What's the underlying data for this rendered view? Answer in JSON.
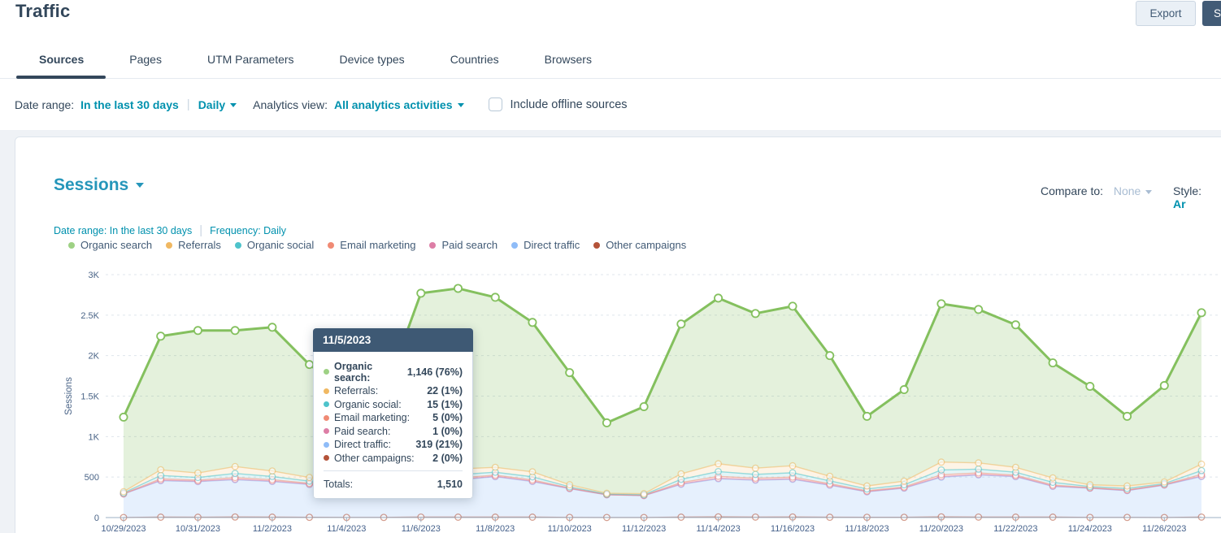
{
  "page": {
    "title": "Traffic"
  },
  "header": {
    "export_button": "Export",
    "save_button": "S"
  },
  "tabs": [
    {
      "label": "Sources",
      "active": true
    },
    {
      "label": "Pages",
      "active": false
    },
    {
      "label": "UTM Parameters",
      "active": false
    },
    {
      "label": "Device types",
      "active": false
    },
    {
      "label": "Countries",
      "active": false
    },
    {
      "label": "Browsers",
      "active": false
    }
  ],
  "filters": {
    "date_range_label": "Date range:",
    "date_range_value": "In the last 30 days",
    "frequency_dropdown": "Daily",
    "analytics_view_label": "Analytics view:",
    "analytics_view_value": "All analytics activities",
    "offline_sources_label": "Include offline sources",
    "offline_sources_checked": false
  },
  "report": {
    "metric_title": "Sessions",
    "compare_label": "Compare to:",
    "compare_value": "None",
    "style_label": "Style:",
    "style_value": "Ar",
    "meta_date_range": "Date range: In the last 30 days",
    "meta_frequency": "Frequency: Daily"
  },
  "tooltip": {
    "date": "11/5/2023",
    "rows": [
      {
        "label": "Organic search:",
        "value": "1,146 (76%)",
        "color": "#9ed184",
        "bold": true
      },
      {
        "label": "Referrals:",
        "value": "22 (1%)",
        "color": "#f0b862",
        "bold": false
      },
      {
        "label": "Organic social:",
        "value": "15 (1%)",
        "color": "#4ec3cb",
        "bold": false
      },
      {
        "label": "Email marketing:",
        "value": "5 (0%)",
        "color": "#f08a74",
        "bold": false
      },
      {
        "label": "Paid search:",
        "value": "1 (0%)",
        "color": "#dd7ea6",
        "bold": false
      },
      {
        "label": "Direct traffic:",
        "value": "319 (21%)",
        "color": "#8fbcf8",
        "bold": false
      },
      {
        "label": "Other campaigns:",
        "value": "2 (0%)",
        "color": "#b45339",
        "bold": false
      }
    ],
    "totals_label": "Totals:",
    "totals_value": "1,510"
  },
  "chart_data": {
    "type": "area",
    "stacked": true,
    "title": "Sessions",
    "ylabel": "Sessions",
    "ylim": [
      0,
      3000
    ],
    "ytick_labels": [
      "0",
      "500",
      "1K",
      "1.5K",
      "2K",
      "2.5K",
      "3K"
    ],
    "x_label_every": 2,
    "x": [
      "10/29/2023",
      "10/30/2023",
      "10/31/2023",
      "11/1/2023",
      "11/2/2023",
      "11/3/2023",
      "11/4/2023",
      "11/5/2023",
      "11/6/2023",
      "11/7/2023",
      "11/8/2023",
      "11/9/2023",
      "11/10/2023",
      "11/11/2023",
      "11/12/2023",
      "11/13/2023",
      "11/14/2023",
      "11/15/2023",
      "11/16/2023",
      "11/17/2023",
      "11/18/2023",
      "11/19/2023",
      "11/20/2023",
      "11/21/2023",
      "11/22/2023",
      "11/23/2023",
      "11/24/2023",
      "11/25/2023",
      "11/26/2023",
      "11/27/2023"
    ],
    "legend": [
      {
        "name": "Organic search",
        "color": "#9ed184"
      },
      {
        "name": "Referrals",
        "color": "#f0b862"
      },
      {
        "name": "Organic social",
        "color": "#4ec3cb"
      },
      {
        "name": "Email marketing",
        "color": "#f08a74"
      },
      {
        "name": "Paid search",
        "color": "#dd7ea6"
      },
      {
        "name": "Direct traffic",
        "color": "#8fbcf8"
      },
      {
        "name": "Other campaigns",
        "color": "#b45339"
      }
    ],
    "series": [
      {
        "name": "Other campaigns",
        "color": "#b45339",
        "fill": "rgba(180,83,57,0.10)",
        "values": [
          1,
          5,
          4,
          7,
          5,
          3,
          2,
          2,
          6,
          5,
          5,
          5,
          2,
          1,
          1,
          5,
          8,
          6,
          7,
          4,
          3,
          3,
          8,
          6,
          5,
          5,
          2,
          2,
          1,
          6
        ]
      },
      {
        "name": "Direct traffic",
        "color": "#8fbcf8",
        "fill": "rgba(143,188,248,0.22)",
        "values": [
          290,
          450,
          440,
          460,
          440,
          405,
          330,
          319,
          440,
          460,
          500,
          440,
          355,
          280,
          270,
          405,
          470,
          455,
          465,
          395,
          315,
          360,
          490,
          520,
          500,
          380,
          360,
          330,
          400,
          500
        ]
      },
      {
        "name": "Paid search",
        "color": "#dd7ea6",
        "fill": "rgba(221,126,166,0.12)",
        "values": [
          1,
          6,
          5,
          7,
          6,
          4,
          2,
          1,
          6,
          6,
          5,
          5,
          2,
          1,
          1,
          6,
          8,
          6,
          7,
          5,
          3,
          4,
          8,
          6,
          5,
          4,
          2,
          3,
          2,
          7
        ]
      },
      {
        "name": "Email marketing",
        "color": "#f08a74",
        "fill": "rgba(240,138,116,0.12)",
        "values": [
          4,
          17,
          13,
          20,
          16,
          11,
          5,
          5,
          18,
          17,
          14,
          15,
          6,
          2,
          3,
          16,
          23,
          19,
          21,
          14,
          9,
          11,
          23,
          19,
          14,
          13,
          5,
          7,
          5,
          19
        ]
      },
      {
        "name": "Organic social",
        "color": "#4ec3cb",
        "fill": "rgba(78,195,203,0.16)",
        "values": [
          9,
          42,
          33,
          51,
          40,
          27,
          14,
          15,
          45,
          42,
          36,
          38,
          15,
          6,
          8,
          40,
          59,
          47,
          53,
          35,
          23,
          27,
          59,
          47,
          36,
          33,
          14,
          18,
          12,
          48
        ]
      },
      {
        "name": "Referrals",
        "color": "#f0b862",
        "fill": "rgba(240,184,98,0.16)",
        "values": [
          15,
          70,
          55,
          85,
          68,
          45,
          22,
          22,
          75,
          70,
          60,
          62,
          25,
          10,
          12,
          68,
          97,
          77,
          87,
          57,
          37,
          45,
          97,
          77,
          60,
          55,
          22,
          30,
          20,
          80
        ]
      },
      {
        "name": "Organic search",
        "color": "#84c05e",
        "fill": "rgba(132,192,94,0.22)",
        "emphasis": true,
        "values": [
          920,
          1650,
          1760,
          1680,
          1775,
          1395,
          1175,
          1146,
          2180,
          2230,
          2100,
          1845,
          1385,
          870,
          1075,
          1850,
          2045,
          1910,
          1970,
          1490,
          860,
          1130,
          1955,
          1895,
          1760,
          1420,
          1215,
          860,
          1190,
          1870
        ]
      }
    ]
  }
}
